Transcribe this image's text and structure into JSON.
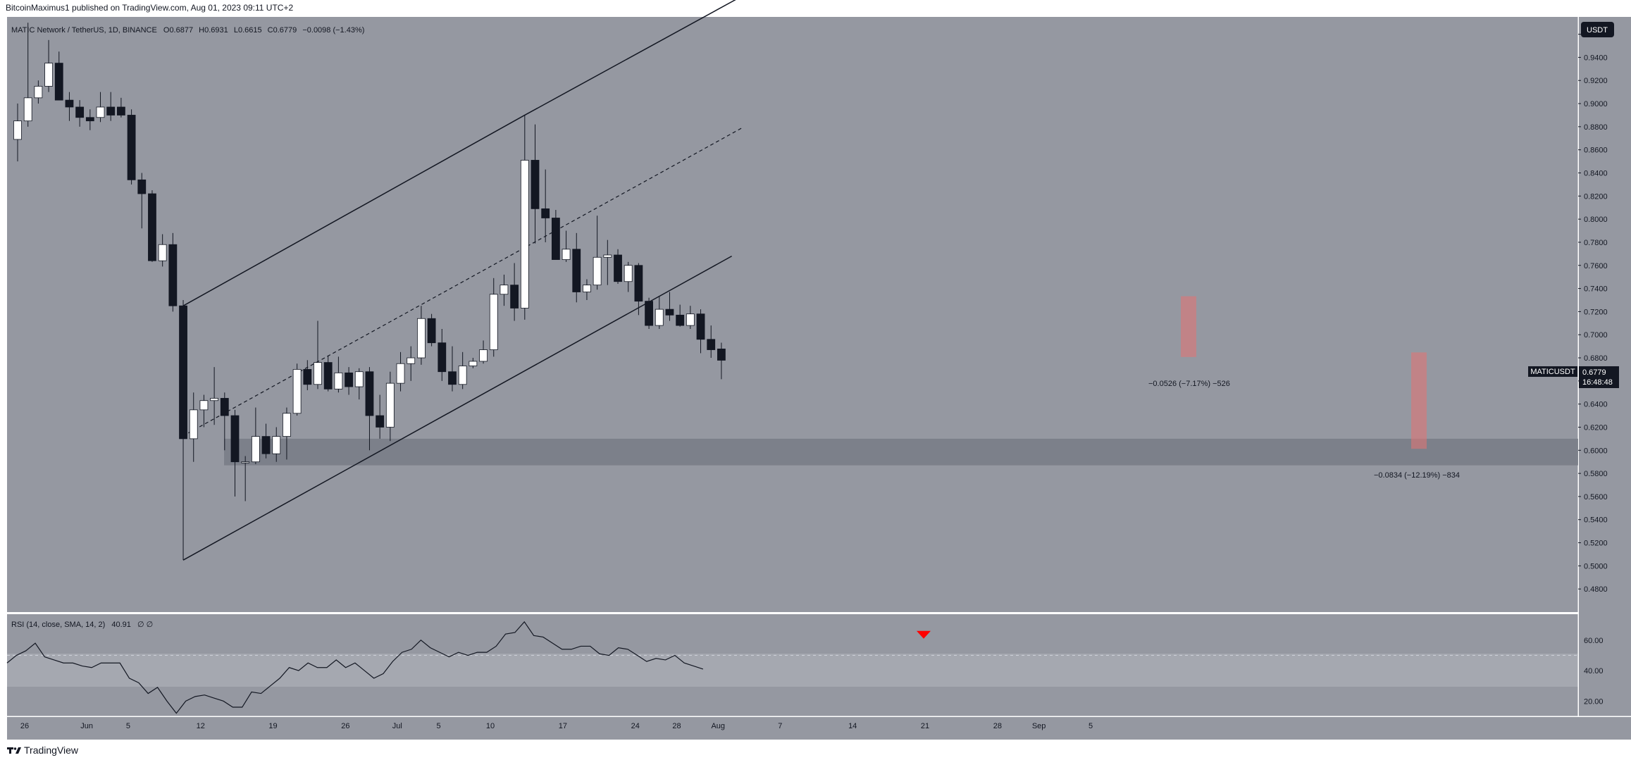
{
  "header": {
    "published_text": "BitcoinMaximus1 published on TradingView.com, Aug 01, 2023 09:11 UTC+2"
  },
  "symbol_info": {
    "text": "MATIC Network / TetherUS, 1D, BINANCE",
    "o_label": "O",
    "o_value": "0.6877",
    "h_label": "H",
    "h_value": "0.6931",
    "l_label": "L",
    "l_value": "0.6615",
    "c_label": "C",
    "c_value": "0.6779",
    "change": "−0.0098 (−1.43%)"
  },
  "currency_button": "USDT",
  "price_tag": {
    "symbol": "MATICUSDT",
    "price": "0.6779",
    "countdown": "16:48:48"
  },
  "colors": {
    "background": "#9598a1",
    "bull": "#ffffff",
    "bear": "#131722",
    "support_zone": "#787b86",
    "measure": "#e57373",
    "signal": "#ff0000"
  },
  "rsi_panel": {
    "label": "RSI (14, close, SMA, 14, 2)",
    "value": "40.91",
    "extra": "∅ ∅",
    "ticks": [
      "60.00",
      "40.00",
      "20.00"
    ]
  },
  "measures": [
    {
      "text": "−0.0526 (−7.17%) −526"
    },
    {
      "text": "−0.0834 (−12.19%) −834"
    }
  ],
  "footer": {
    "brand": "TradingView"
  },
  "chart_data": {
    "type": "candlestick",
    "title": "MATIC Network / TetherUS, 1D, BINANCE",
    "ylim": [
      0.46,
      0.975
    ],
    "y_ticks": [
      "0.9600",
      "0.9400",
      "0.9200",
      "0.9000",
      "0.8800",
      "0.8600",
      "0.8400",
      "0.8200",
      "0.8000",
      "0.7800",
      "0.7600",
      "0.7400",
      "0.7200",
      "0.7000",
      "0.6800",
      "0.6600",
      "0.6400",
      "0.6200",
      "0.6000",
      "0.5800",
      "0.5600",
      "0.5400",
      "0.5200",
      "0.5000",
      "0.4800"
    ],
    "x_ticks": [
      {
        "label": "26",
        "day": 0
      },
      {
        "label": "Jun",
        "day": 6
      },
      {
        "label": "5",
        "day": 10
      },
      {
        "label": "12",
        "day": 17
      },
      {
        "label": "19",
        "day": 24
      },
      {
        "label": "26",
        "day": 31
      },
      {
        "label": "Jul",
        "day": 36
      },
      {
        "label": "5",
        "day": 40
      },
      {
        "label": "10",
        "day": 45
      },
      {
        "label": "17",
        "day": 52
      },
      {
        "label": "24",
        "day": 59
      },
      {
        "label": "28",
        "day": 63
      },
      {
        "label": "Aug",
        "day": 67
      },
      {
        "label": "7",
        "day": 73
      },
      {
        "label": "14",
        "day": 80
      },
      {
        "label": "21",
        "day": 87
      },
      {
        "label": "28",
        "day": 94
      },
      {
        "label": "Sep",
        "day": 98
      },
      {
        "label": "5",
        "day": 103
      }
    ],
    "ohlc": [
      [
        0.869,
        0.9,
        0.85,
        0.885
      ],
      [
        0.885,
        0.97,
        0.88,
        0.905
      ],
      [
        0.905,
        0.92,
        0.9,
        0.915
      ],
      [
        0.915,
        0.955,
        0.91,
        0.935
      ],
      [
        0.935,
        0.945,
        0.905,
        0.903
      ],
      [
        0.903,
        0.91,
        0.885,
        0.897
      ],
      [
        0.897,
        0.903,
        0.88,
        0.888
      ],
      [
        0.888,
        0.895,
        0.877,
        0.885
      ],
      [
        0.888,
        0.91,
        0.884,
        0.897
      ],
      [
        0.897,
        0.91,
        0.885,
        0.89
      ],
      [
        0.897,
        0.905,
        0.888,
        0.89
      ],
      [
        0.89,
        0.895,
        0.83,
        0.834
      ],
      [
        0.834,
        0.84,
        0.792,
        0.822
      ],
      [
        0.822,
        0.825,
        0.763,
        0.764
      ],
      [
        0.764,
        0.787,
        0.759,
        0.778
      ],
      [
        0.778,
        0.788,
        0.72,
        0.725
      ],
      [
        0.725,
        0.73,
        0.505,
        0.61
      ],
      [
        0.61,
        0.65,
        0.59,
        0.635
      ],
      [
        0.635,
        0.648,
        0.62,
        0.643
      ],
      [
        0.643,
        0.672,
        0.622,
        0.645
      ],
      [
        0.645,
        0.65,
        0.6,
        0.63
      ],
      [
        0.63,
        0.635,
        0.56,
        0.59
      ],
      [
        0.59,
        0.595,
        0.556,
        0.59
      ],
      [
        0.59,
        0.637,
        0.588,
        0.612
      ],
      [
        0.612,
        0.623,
        0.593,
        0.597
      ],
      [
        0.597,
        0.62,
        0.59,
        0.612
      ],
      [
        0.612,
        0.637,
        0.592,
        0.632
      ],
      [
        0.632,
        0.675,
        0.63,
        0.67
      ],
      [
        0.67,
        0.678,
        0.652,
        0.657
      ],
      [
        0.657,
        0.712,
        0.653,
        0.676
      ],
      [
        0.676,
        0.682,
        0.651,
        0.653
      ],
      [
        0.653,
        0.681,
        0.65,
        0.667
      ],
      [
        0.667,
        0.672,
        0.648,
        0.655
      ],
      [
        0.655,
        0.671,
        0.644,
        0.668
      ],
      [
        0.668,
        0.672,
        0.6,
        0.63
      ],
      [
        0.63,
        0.648,
        0.61,
        0.62
      ],
      [
        0.62,
        0.668,
        0.608,
        0.658
      ],
      [
        0.658,
        0.685,
        0.651,
        0.675
      ],
      [
        0.675,
        0.69,
        0.66,
        0.68
      ],
      [
        0.68,
        0.725,
        0.674,
        0.714
      ],
      [
        0.714,
        0.718,
        0.69,
        0.693
      ],
      [
        0.693,
        0.705,
        0.66,
        0.668
      ],
      [
        0.668,
        0.69,
        0.651,
        0.657
      ],
      [
        0.657,
        0.685,
        0.653,
        0.673
      ],
      [
        0.673,
        0.68,
        0.671,
        0.677
      ],
      [
        0.677,
        0.695,
        0.675,
        0.687
      ],
      [
        0.687,
        0.749,
        0.681,
        0.735
      ],
      [
        0.735,
        0.752,
        0.725,
        0.743
      ],
      [
        0.743,
        0.762,
        0.712,
        0.723
      ],
      [
        0.723,
        0.89,
        0.713,
        0.851
      ],
      [
        0.851,
        0.882,
        0.779,
        0.809
      ],
      [
        0.809,
        0.843,
        0.78,
        0.801
      ],
      [
        0.801,
        0.808,
        0.765,
        0.765
      ],
      [
        0.765,
        0.79,
        0.763,
        0.774
      ],
      [
        0.774,
        0.788,
        0.728,
        0.737
      ],
      [
        0.737,
        0.748,
        0.73,
        0.743
      ],
      [
        0.743,
        0.803,
        0.739,
        0.767
      ],
      [
        0.767,
        0.782,
        0.743,
        0.769
      ],
      [
        0.769,
        0.774,
        0.744,
        0.746
      ],
      [
        0.746,
        0.763,
        0.737,
        0.76
      ],
      [
        0.76,
        0.762,
        0.717,
        0.729
      ],
      [
        0.729,
        0.732,
        0.705,
        0.708
      ],
      [
        0.708,
        0.733,
        0.705,
        0.722
      ],
      [
        0.722,
        0.737,
        0.712,
        0.717
      ],
      [
        0.717,
        0.726,
        0.707,
        0.708
      ],
      [
        0.708,
        0.725,
        0.705,
        0.718
      ],
      [
        0.718,
        0.722,
        0.684,
        0.696
      ],
      [
        0.696,
        0.708,
        0.68,
        0.687
      ],
      [
        0.6877,
        0.6931,
        0.6615,
        0.6779
      ]
    ],
    "support_zone": [
      0.587,
      0.61
    ],
    "channel": {
      "upper": [
        [
          16,
          0.725
        ],
        [
          49,
          0.89
        ],
        [
          70,
          0.993
        ]
      ],
      "middle": [
        [
          16.5,
          0.615
        ],
        [
          70,
          0.879
        ]
      ],
      "lower": [
        [
          16,
          0.505
        ],
        [
          69,
          0.768
        ]
      ]
    },
    "rsi": [
      45,
      50,
      53,
      58,
      49,
      47,
      45,
      45,
      43,
      42,
      45,
      45,
      45,
      35,
      32,
      25,
      29,
      20,
      12,
      20,
      23,
      24,
      22,
      20,
      16,
      16,
      26,
      25,
      30,
      35,
      42,
      40,
      45,
      42,
      42,
      47,
      42,
      45,
      40,
      35,
      38,
      46,
      52,
      54,
      60,
      55,
      52,
      49,
      52,
      50,
      52,
      52,
      56,
      64,
      65,
      72,
      63,
      62,
      58,
      54,
      54,
      56,
      56,
      51,
      50,
      55,
      54,
      50,
      46,
      48,
      47,
      50,
      45,
      43,
      41
    ],
    "rsi_ylim": [
      10,
      77
    ],
    "rsi_signal_level": 66
  }
}
